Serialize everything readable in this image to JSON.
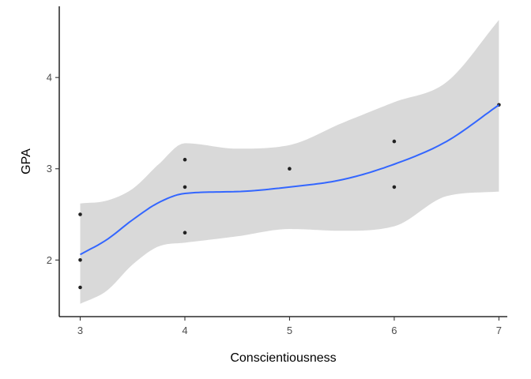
{
  "chart_data": {
    "type": "scatter",
    "xlabel": "Conscientiousness",
    "ylabel": "GPA",
    "xlim": [
      2.8,
      7.08
    ],
    "ylim": [
      1.38,
      4.78
    ],
    "x_ticks": [
      3,
      4,
      5,
      6,
      7
    ],
    "y_ticks": [
      2,
      3,
      4
    ],
    "grid": false,
    "points": [
      {
        "x": 3,
        "y": 1.7
      },
      {
        "x": 3,
        "y": 2.0
      },
      {
        "x": 3,
        "y": 2.5
      },
      {
        "x": 4,
        "y": 2.3
      },
      {
        "x": 4,
        "y": 2.8
      },
      {
        "x": 4,
        "y": 3.1
      },
      {
        "x": 5,
        "y": 3.0
      },
      {
        "x": 6,
        "y": 2.8
      },
      {
        "x": 6,
        "y": 3.3
      },
      {
        "x": 7,
        "y": 3.7
      }
    ],
    "smooth": {
      "method": "loess",
      "line_color": "#3366FF",
      "ribbon_color": "#d9d9d9",
      "fit": [
        {
          "x": 3.0,
          "y": 2.06,
          "lo": 1.52,
          "hi": 2.62
        },
        {
          "x": 3.25,
          "y": 2.22,
          "lo": 1.66,
          "hi": 2.65
        },
        {
          "x": 3.5,
          "y": 2.44,
          "lo": 1.95,
          "hi": 2.78
        },
        {
          "x": 3.75,
          "y": 2.63,
          "lo": 2.15,
          "hi": 3.05
        },
        {
          "x": 4.0,
          "y": 2.73,
          "lo": 2.19,
          "hi": 3.28
        },
        {
          "x": 4.5,
          "y": 2.75,
          "lo": 2.26,
          "hi": 3.22
        },
        {
          "x": 5.0,
          "y": 2.8,
          "lo": 2.34,
          "hi": 3.26
        },
        {
          "x": 5.5,
          "y": 2.88,
          "lo": 2.32,
          "hi": 3.5
        },
        {
          "x": 6.0,
          "y": 3.05,
          "lo": 2.37,
          "hi": 3.73
        },
        {
          "x": 6.5,
          "y": 3.3,
          "lo": 2.7,
          "hi": 3.95
        },
        {
          "x": 7.0,
          "y": 3.7,
          "lo": 2.75,
          "hi": 4.63
        }
      ]
    }
  }
}
